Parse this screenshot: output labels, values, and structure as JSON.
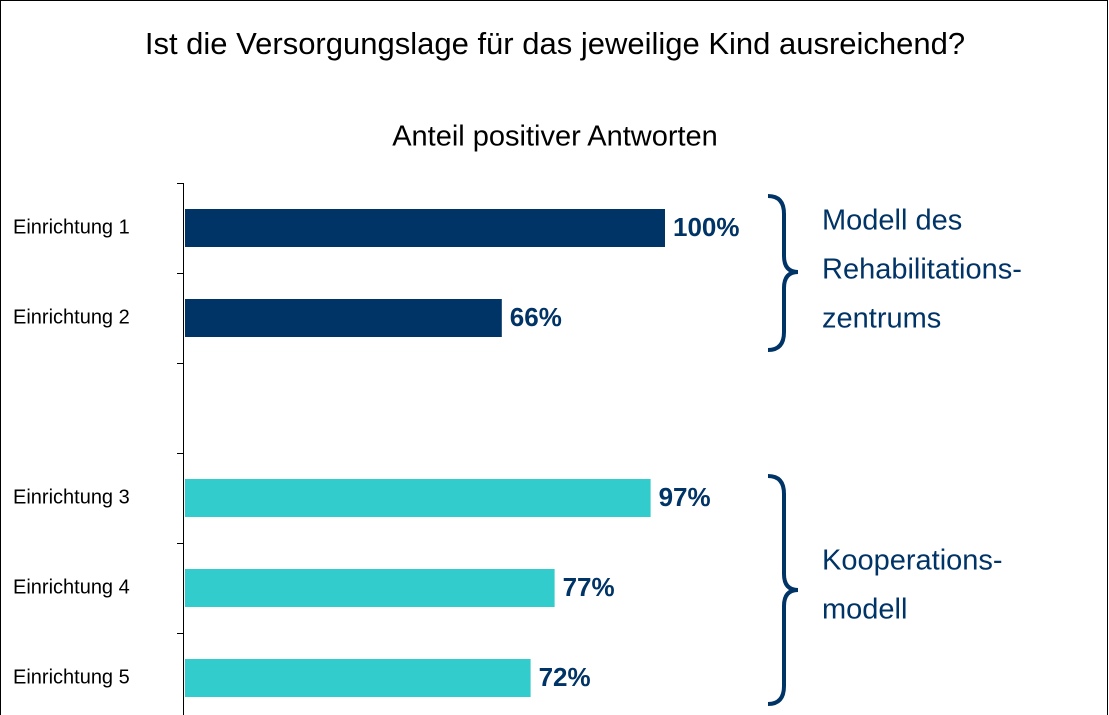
{
  "chart_data": {
    "type": "barh",
    "title": "Ist die Versorgungslage für das jeweilige Kind ausreichend?",
    "subtitle": "Anteil positiver Antworten",
    "categories": [
      "Einrichtung 1",
      "Einrichtung 2",
      null,
      "Einrichtung 3",
      "Einrichtung 4",
      "Einrichtung 5"
    ],
    "values": [
      100,
      66,
      null,
      97,
      77,
      72
    ],
    "value_labels": [
      "100%",
      "66%",
      null,
      "97%",
      "77%",
      "72%"
    ],
    "colors": [
      "#003366",
      "#003366",
      null,
      "#33cccc",
      "#33cccc",
      "#33cccc"
    ],
    "xlim": [
      0,
      100
    ],
    "annotations": [
      {
        "lines": [
          "Modell des",
          "Rehabilitations-",
          "zentrums"
        ]
      },
      {
        "lines": [
          "Kooperations-",
          "modell"
        ]
      }
    ]
  }
}
